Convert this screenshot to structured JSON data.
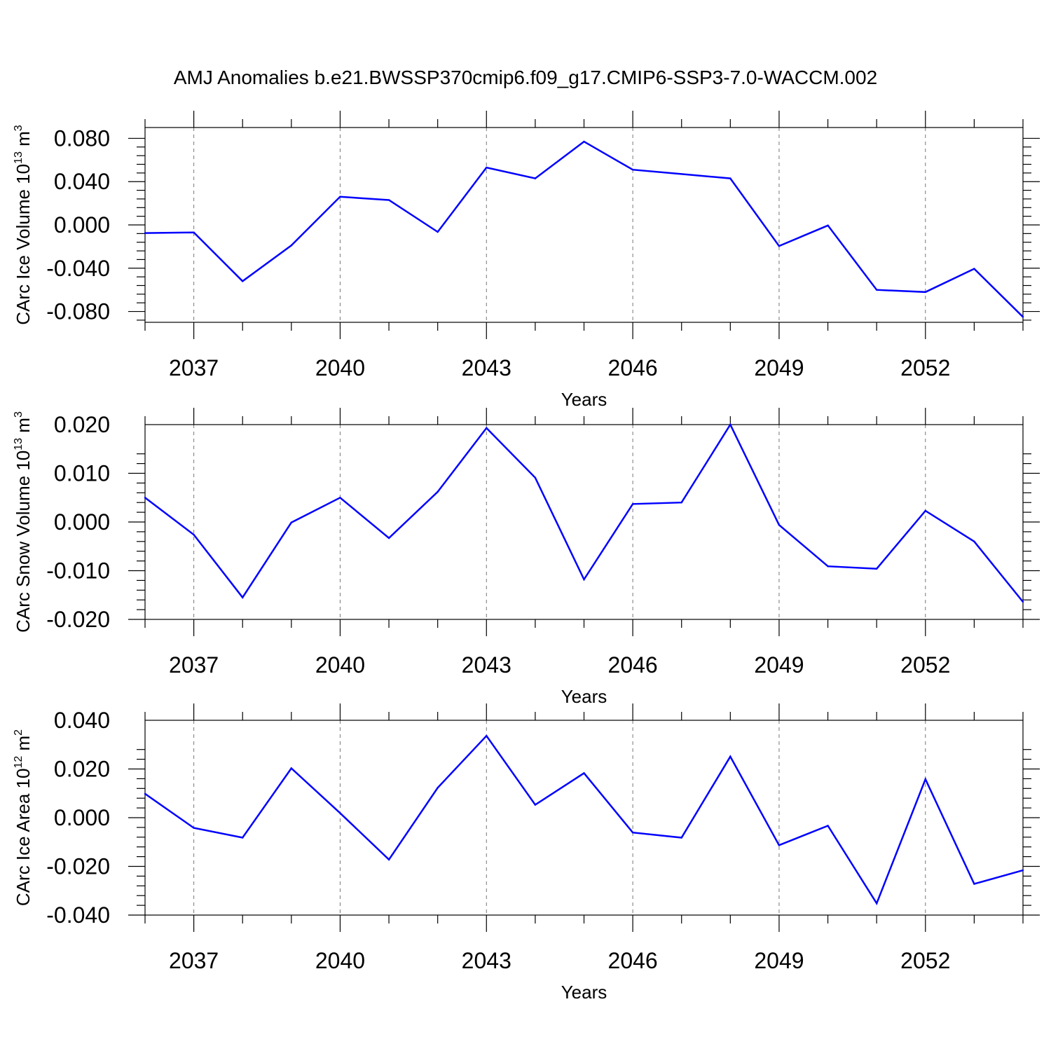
{
  "title": "AMJ Anomalies b.e21.BWSSP370cmip6.f09_g17.CMIP6-SSP3-7.0-WACCM.002",
  "colors": {
    "series": "#0000ff",
    "axis": "#000000",
    "grid": "#777777"
  },
  "chart_data": [
    {
      "type": "line",
      "ylabel": {
        "prefix": "CArc Ice Volume 10",
        "exp": "13",
        "unit": " m",
        "unit_exp": "3"
      },
      "xlabel": "Years",
      "xlim": [
        2036,
        2054
      ],
      "ylim": [
        -0.09,
        0.09
      ],
      "yticks": [
        -0.08,
        -0.04,
        0.0,
        0.04,
        0.08
      ],
      "ytick_labels": [
        "-0.080",
        "-0.040",
        "0.000",
        "0.040",
        "0.080"
      ],
      "xticks": [
        2037,
        2040,
        2043,
        2046,
        2049,
        2052
      ],
      "xtick_labels": [
        "2037",
        "2040",
        "2043",
        "2046",
        "2049",
        "2052"
      ],
      "grid": "x-dashed",
      "x": [
        2036,
        2037,
        2038,
        2039,
        2040,
        2041,
        2042,
        2043,
        2044,
        2045,
        2046,
        2047,
        2048,
        2049,
        2050,
        2051,
        2052,
        2053,
        2054
      ],
      "values": [
        -0.0075,
        -0.007,
        -0.052,
        -0.019,
        0.026,
        0.023,
        -0.0065,
        0.053,
        0.043,
        0.077,
        0.051,
        0.047,
        0.043,
        -0.0195,
        -0.0005,
        -0.06,
        -0.062,
        -0.0405,
        -0.085
      ]
    },
    {
      "type": "line",
      "ylabel": {
        "prefix": "CArc Snow Volume 10",
        "exp": "13",
        "unit": " m",
        "unit_exp": "3"
      },
      "xlabel": "Years",
      "xlim": [
        2036,
        2054
      ],
      "ylim": [
        -0.02,
        0.02
      ],
      "yticks": [
        -0.02,
        -0.01,
        0.0,
        0.01,
        0.02
      ],
      "ytick_labels": [
        "-0.020",
        "-0.010",
        "0.000",
        "0.010",
        "0.020"
      ],
      "xticks": [
        2037,
        2040,
        2043,
        2046,
        2049,
        2052
      ],
      "xtick_labels": [
        "2037",
        "2040",
        "2043",
        "2046",
        "2049",
        "2052"
      ],
      "grid": "x-dashed",
      "x": [
        2036,
        2037,
        2038,
        2039,
        2040,
        2041,
        2042,
        2043,
        2044,
        2045,
        2046,
        2047,
        2048,
        2049,
        2050,
        2051,
        2052,
        2053,
        2054
      ],
      "values": [
        0.005,
        -0.0026,
        -0.0155,
        -0.0001,
        0.005,
        -0.0033,
        0.0062,
        0.0193,
        0.0091,
        -0.0118,
        0.0037,
        0.004,
        0.02,
        -0.0006,
        -0.0091,
        -0.0096,
        0.0023,
        -0.004,
        -0.0164
      ]
    },
    {
      "type": "line",
      "ylabel": {
        "prefix": "CArc Ice Area 10",
        "exp": "12",
        "unit": " m",
        "unit_exp": "2"
      },
      "xlabel": "Years",
      "xlim": [
        2036,
        2054
      ],
      "ylim": [
        -0.04,
        0.04
      ],
      "yticks": [
        -0.04,
        -0.02,
        0.0,
        0.02,
        0.04
      ],
      "ytick_labels": [
        "-0.040",
        "-0.020",
        "0.000",
        "0.020",
        "0.040"
      ],
      "xticks": [
        2037,
        2040,
        2043,
        2046,
        2049,
        2052
      ],
      "xtick_labels": [
        "2037",
        "2040",
        "2043",
        "2046",
        "2049",
        "2052"
      ],
      "grid": "x-dashed",
      "x": [
        2036,
        2037,
        2038,
        2039,
        2040,
        2041,
        2042,
        2043,
        2044,
        2045,
        2046,
        2047,
        2048,
        2049,
        2050,
        2051,
        2052,
        2053,
        2054
      ],
      "values": [
        0.0098,
        -0.0042,
        -0.0082,
        0.0203,
        0.0019,
        -0.0172,
        0.0123,
        0.0336,
        0.0053,
        0.0183,
        -0.0061,
        -0.0082,
        0.0251,
        -0.0113,
        -0.0033,
        -0.0352,
        0.0158,
        -0.0272,
        -0.0216
      ]
    }
  ]
}
